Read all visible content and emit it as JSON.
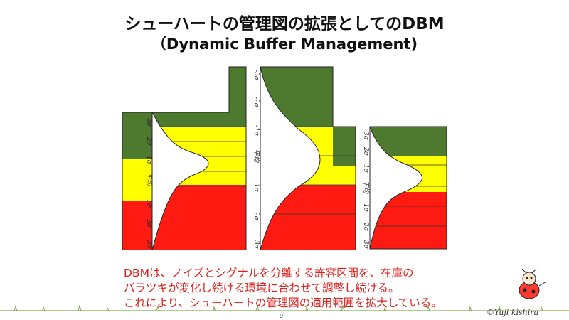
{
  "title": {
    "line1": "シューハートの管理図の拡張としてのDBM",
    "line2": "（Dynamic Buffer Management)"
  },
  "axis_ticks": [
    "-3σ",
    "-2σ",
    "-1σ",
    "平均",
    "1σ",
    "2σ",
    "3σ"
  ],
  "zone_colors": {
    "green": "#4d7a2f",
    "yellow": "#ffff00",
    "red": "#ff1a12"
  },
  "charts": [
    {
      "name": "chart-1"
    },
    {
      "name": "chart-2"
    },
    {
      "name": "chart-3"
    }
  ],
  "caption": {
    "line1": "DBMは、ノイズとシグナルを分離する許容区間を、在庫の",
    "line2": "バラツキが変化し続ける環境に合わせて調整し続ける。",
    "line3": "これにより、シューハートの管理図の適用範囲を拡大している。"
  },
  "page_number": "9",
  "credit": "©Yuji kishira"
}
